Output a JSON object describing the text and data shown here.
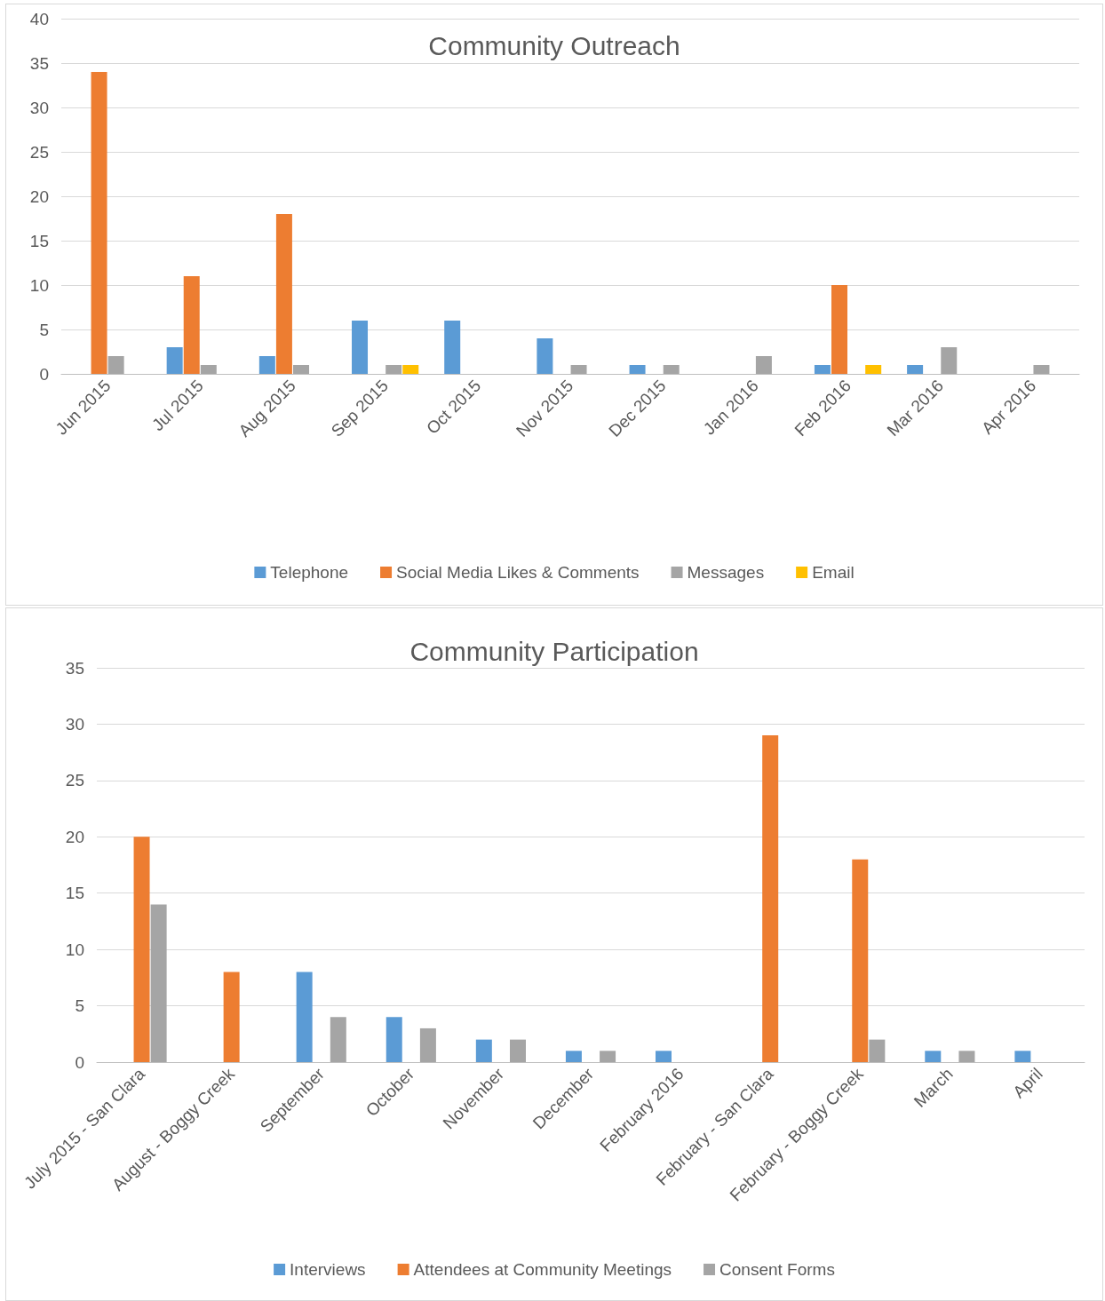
{
  "chart_data": [
    {
      "type": "bar",
      "title": "Community Outreach",
      "categories": [
        "Jun 2015",
        "Jul 2015",
        "Aug 2015",
        "Sep 2015",
        "Oct 2015",
        "Nov 2015",
        "Dec 2015",
        "Jan 2016",
        "Feb 2016",
        "Mar 2016",
        "Apr 2016"
      ],
      "series": [
        {
          "name": "Telephone",
          "color": "#5b9bd5",
          "values": [
            null,
            3,
            2,
            6,
            6,
            4,
            1,
            null,
            1,
            1,
            null
          ]
        },
        {
          "name": "Social Media Likes & Comments",
          "color": "#ed7d31",
          "values": [
            34,
            11,
            18,
            null,
            null,
            null,
            null,
            null,
            10,
            null,
            null
          ]
        },
        {
          "name": "Messages",
          "color": "#a5a5a5",
          "values": [
            2,
            1,
            1,
            1,
            null,
            1,
            1,
            2,
            null,
            3,
            1
          ]
        },
        {
          "name": "Email",
          "color": "#ffc000",
          "values": [
            null,
            null,
            null,
            1,
            null,
            null,
            null,
            null,
            1,
            null,
            null
          ]
        }
      ],
      "ylim": [
        0,
        40
      ],
      "yticks": [
        0,
        5,
        10,
        15,
        20,
        25,
        30,
        35,
        40
      ],
      "grid": "y",
      "legend": "bottom"
    },
    {
      "type": "bar",
      "title": "Community Participation",
      "categories": [
        "July 2015 - San Clara",
        "August - Boggy Creek",
        "September",
        "October",
        "November",
        "December",
        "February 2016",
        "February - San Clara",
        "February - Boggy Creek",
        "March",
        "April"
      ],
      "series": [
        {
          "name": "Interviews",
          "color": "#5b9bd5",
          "values": [
            null,
            null,
            8,
            4,
            2,
            1,
            1,
            null,
            null,
            1,
            1
          ]
        },
        {
          "name": "Attendees at Community Meetings",
          "color": "#ed7d31",
          "values": [
            20,
            8,
            null,
            null,
            null,
            null,
            null,
            29,
            18,
            null,
            null
          ]
        },
        {
          "name": "Consent Forms",
          "color": "#a5a5a5",
          "values": [
            14,
            null,
            4,
            3,
            2,
            1,
            null,
            null,
            2,
            1,
            null
          ]
        }
      ],
      "ylim": [
        0,
        35
      ],
      "yticks": [
        0,
        5,
        10,
        15,
        20,
        25,
        30,
        35
      ],
      "grid": "y",
      "legend": "bottom"
    }
  ]
}
